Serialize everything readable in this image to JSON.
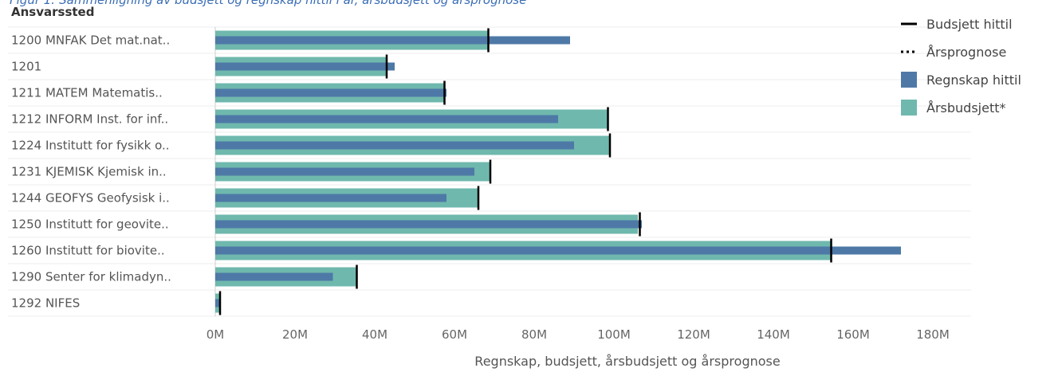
{
  "caption": "Figur 1: Sammenligning av budsjett og regnskap hittil i år, årsbudsjett og årsprognose",
  "chart_data": {
    "type": "bar",
    "orientation": "horizontal",
    "row_header": "Ansvarssted",
    "xlabel": "Regnskap, budsjett, årsbudsjett og årsprognose",
    "xlim": [
      0,
      180
    ],
    "xticks": [
      0,
      20,
      40,
      60,
      80,
      100,
      120,
      140,
      160,
      180
    ],
    "xtick_labels": [
      "0M",
      "20M",
      "40M",
      "60M",
      "80M",
      "100M",
      "120M",
      "140M",
      "160M",
      "180M"
    ],
    "unit": "M",
    "categories": [
      "1200 MNFAK Det mat.nat..",
      "1201",
      "1211 MATEM Matematis..",
      "1212 INFORM Inst. for inf..",
      "1224 Institutt for fysikk o..",
      "1231 KJEMISK Kjemisk in..",
      "1244 GEOFYS Geofysisk i..",
      "1250 Institutt for geovite..",
      "1260 Institutt for biovite..",
      "1290 Senter for klimadyn..",
      "1292 NIFES"
    ],
    "series": [
      {
        "name": "Årsbudsjett*",
        "color": "#6fb8ad",
        "values": [
          68.5,
          43,
          57.5,
          98.5,
          99,
          69,
          66,
          106,
          154.5,
          35.5,
          1.2
        ]
      },
      {
        "name": "Regnskap hittil",
        "color": "#4e79a7",
        "values": [
          89,
          45,
          58,
          86,
          90,
          65,
          58,
          107,
          172,
          29.5,
          1.2
        ]
      },
      {
        "name": "Budsjett hittil",
        "color": "#000000",
        "values": [
          68.5,
          43,
          57.5,
          98.5,
          99,
          69,
          66,
          106.5,
          154.5,
          35.5,
          1.2
        ]
      }
    ],
    "legend": [
      {
        "label": "Budsjett hittil",
        "symbol": "solid-line"
      },
      {
        "label": "Årsprognose",
        "symbol": "dotted-line"
      },
      {
        "label": "Regnskap hittil",
        "symbol": "square",
        "color": "#4e79a7"
      },
      {
        "label": "Årsbudsjett*",
        "symbol": "square",
        "color": "#6fb8ad"
      }
    ],
    "legend_position": "top-right",
    "grid": false
  }
}
